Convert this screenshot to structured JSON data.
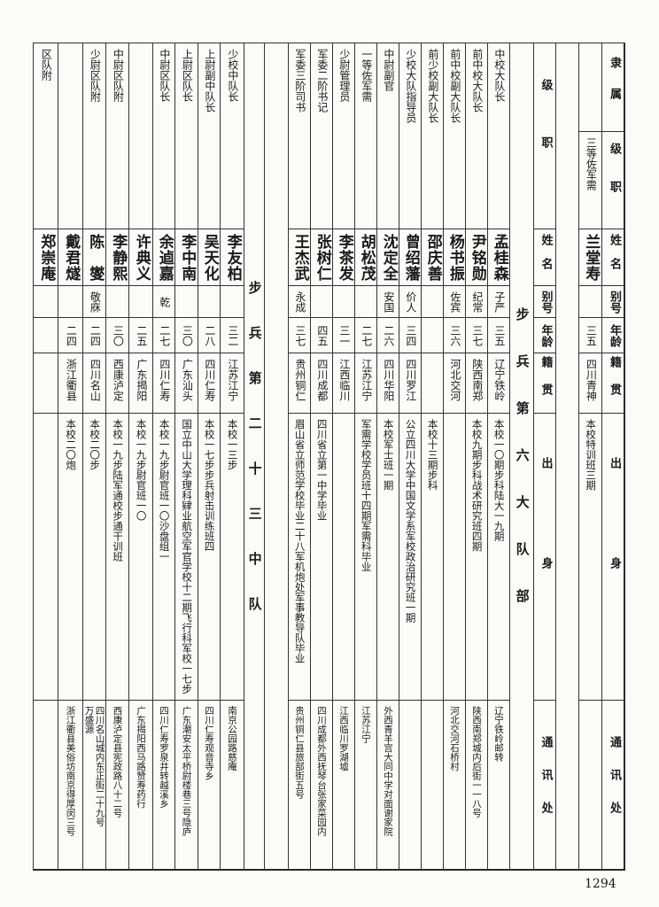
{
  "header_labels": {
    "affiliation": "隶属",
    "rank_post": "级职",
    "name": "姓名",
    "alias": "别号",
    "age": "年龄",
    "native_place": "籍贯",
    "background": "出身",
    "address": "通讯处"
  },
  "attached_entry": {
    "rank_post": "三等佐军需",
    "name": "兰堂寿",
    "alias": "",
    "age": "三五",
    "native_place": "四川青神",
    "background": "本校特训班三期",
    "address": ""
  },
  "sections": [
    {
      "title": "步兵第六大队部",
      "members": [
        {
          "rank_post": "中校大队长",
          "name": "孟桂森",
          "alias": "子严",
          "age": "三五",
          "native_place": "辽宁铁岭",
          "background": "本校一〇期步科陆大一九期",
          "address": "辽宁铁岭邮转"
        },
        {
          "rank_post": "前中校大队长",
          "name": "尹铭勋",
          "alias": "纪常",
          "age": "三七",
          "native_place": "陕西南郑",
          "background": "本校九期步科战术研究班四期",
          "address": "陕西南郑城内后街一一八号"
        },
        {
          "rank_post": "前中校副大队长",
          "name": "杨书振",
          "alias": "佐宾",
          "age": "三六",
          "native_place": "河北交河",
          "background": "",
          "address": "河北交河石桥村"
        },
        {
          "rank_post": "前少校副大队长",
          "name": "邵庆善",
          "alias": "",
          "age": "",
          "native_place": "",
          "background": "本校十三期步科",
          "address": ""
        },
        {
          "rank_post": "少校大队指导员",
          "name": "曾绍藩",
          "alias": "价人",
          "age": "三四",
          "native_place": "四川罗江",
          "background": "公立四川大学中国文学系军校政治研究班一期",
          "address": ""
        },
        {
          "rank_post": "中尉副官",
          "name": "沈定全",
          "alias": "安国",
          "age": "二六",
          "native_place": "四川华阳",
          "background": "本校军士班一期",
          "address": "外西青羊宫大同中学对面谢家院"
        },
        {
          "rank_post": "一等佐军需",
          "name": "胡松茂",
          "alias": "",
          "age": "二七",
          "native_place": "江苏江宁",
          "background": "军需学校学员班十四期军需科毕业",
          "address": "江苏江宁"
        },
        {
          "rank_post": "少尉管理员",
          "name": "李茶发",
          "alias": "",
          "age": "三一",
          "native_place": "江西临川",
          "background": "",
          "address": "江西临川罗湖墟"
        },
        {
          "rank_post": "军委二阶书记",
          "name": "张树仁",
          "alias": "",
          "age": "四五",
          "native_place": "四川成都",
          "background": "四川省立第一中学毕业",
          "address": "四川成都外西抚琴台张家菜园内"
        },
        {
          "rank_post": "军委三阶司书",
          "name": "王杰武",
          "alias": "永成",
          "age": "三七",
          "native_place": "贵州铜仁",
          "background": "眉山省立师范学校毕业二十八军机炮处军事教导队毕业",
          "address": "贵州铜仁县旅部街五号"
        }
      ]
    },
    {
      "title": "步兵第二十三中队",
      "members": [
        {
          "rank_post": "少校中队长",
          "name": "李友柏",
          "alias": "",
          "age": "三二",
          "native_place": "江苏江宁",
          "background": "本校一三步",
          "address": "南京公园路慈庵"
        },
        {
          "rank_post": "上尉副中队长",
          "name": "吴天化",
          "alias": "",
          "age": "二八",
          "native_place": "四川仁寿",
          "background": "本校一七步步兵射击训练班四",
          "address": "四川仁寿观音寺乡"
        },
        {
          "rank_post": "上尉区队长",
          "name": "李中南",
          "alias": "",
          "age": "三〇",
          "native_place": "广东汕头",
          "background": "国立中山大学理科肄业航空军官学校十二期飞行科军校一七步",
          "address": "广东潮安太平桥尉楼巷三号隐庐"
        },
        {
          "rank_post": "中尉区队长",
          "name": "余逌嘉",
          "alias": "乾",
          "age": "二七",
          "native_place": "四川仁寿",
          "background": "本校一九步尉官班一〇沙盘组一",
          "address": "四川仁寿罗泉井转越溪乡"
        },
        {
          "rank_post": "",
          "name": "许典义",
          "alias": "",
          "age": "二五",
          "native_place": "广东揭阳",
          "background": "本校一九步尉官班一〇",
          "address": "广东揭阳西马路赞寿药行"
        },
        {
          "rank_post": "中尉区队附",
          "name": "李静熙",
          "alias": "",
          "age": "三〇",
          "native_place": "西康泸定",
          "background": "本校一九步陆军通校步通干训班",
          "address": "西康泸定县宪政路八十二号"
        },
        {
          "rank_post": "少尉区队附",
          "name": "陈　燮",
          "alias": "敬庥",
          "age": "二四",
          "native_place": "四川名山",
          "background": "本校二〇步",
          "address": "四川名山城内东正街二十九号\n万盛源"
        },
        {
          "rank_post": "",
          "name": "戴君燧",
          "alias": "",
          "age": "二四",
          "native_place": "浙江衢县",
          "background": "本校二〇炮",
          "address": "浙江衢县美俗坊南京得厚闵三号"
        },
        {
          "rank_post": "区队附",
          "name": "郑崇庵",
          "alias": "",
          "age": "",
          "native_place": "",
          "background": "",
          "address": ""
        }
      ]
    }
  ],
  "page_number": "1294"
}
